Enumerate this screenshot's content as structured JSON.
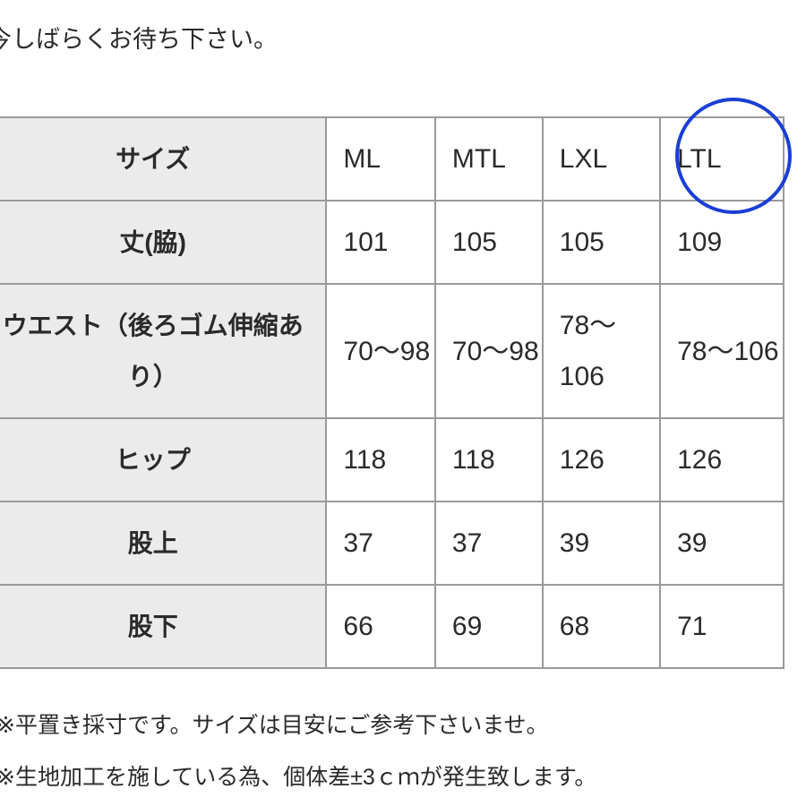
{
  "intro_text": "今しばらくお待ち下さい。",
  "table": {
    "header": {
      "label": "サイズ",
      "sizes": [
        "ML",
        "MTL",
        "LXL",
        "LTL"
      ]
    },
    "rows": [
      {
        "label": "丈(脇)",
        "values": [
          "101",
          "105",
          "105",
          "109"
        ]
      },
      {
        "label": "ウエスト（後ろゴム伸縮あり）",
        "values": [
          "70〜98",
          "70〜98",
          "78〜106",
          "78〜106"
        ]
      },
      {
        "label": "ヒップ",
        "values": [
          "118",
          "118",
          "126",
          "126"
        ]
      },
      {
        "label": "股上",
        "values": [
          "37",
          "37",
          "39",
          "39"
        ]
      },
      {
        "label": "股下",
        "values": [
          "66",
          "69",
          "68",
          "71"
        ]
      }
    ]
  },
  "highlight": {
    "column": "LTL",
    "color": "#1a3fd6"
  },
  "notes": [
    "※平置き採寸です。サイズは目安にご参考下さいませ。",
    "※生地加工を施している為、個体差±3ｃｍが発生致します。"
  ]
}
